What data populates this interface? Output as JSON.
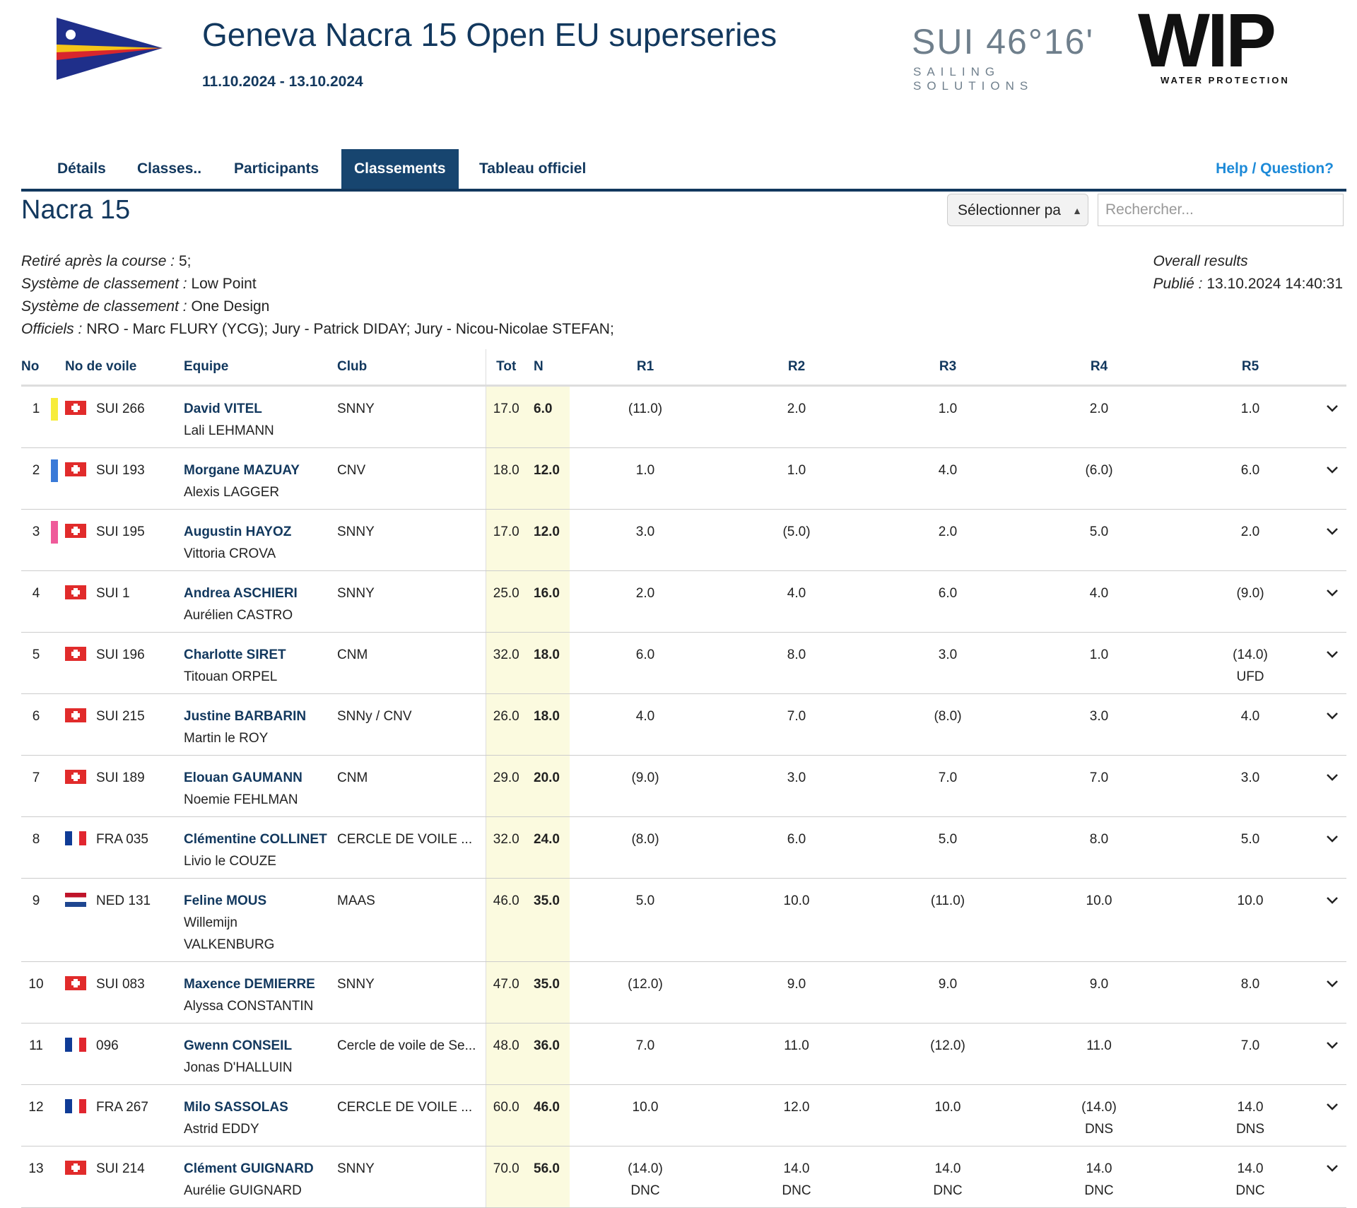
{
  "header": {
    "title": "Geneva Nacra 15 Open EU superseries",
    "dates": "11.10.2024 - 13.10.2024",
    "sponsors": [
      {
        "name": "SUI 46 16",
        "word": "SUI 46°16'",
        "sub": "SAILING SOLUTIONS"
      },
      {
        "name": "WIP",
        "word": "WIP",
        "sub": "WATER PROTECTION"
      }
    ]
  },
  "nav": {
    "tabs": [
      "Détails",
      "Classes..",
      "Participants",
      "Classements",
      "Tableau officiel"
    ],
    "active": "Classements",
    "help": "Help / Question?"
  },
  "class_name": "Nacra 15",
  "controls": {
    "select_label": "Sélectionner pa",
    "search_placeholder": "Rechercher..."
  },
  "info": {
    "lines": [
      {
        "k": "Retiré après la course :",
        "v": " 5;"
      },
      {
        "k": "Système de classement :",
        "v": " Low Point"
      },
      {
        "k": "Système de classement :",
        "v": " One Design"
      },
      {
        "k": "Officiels :",
        "v": " NRO - Marc FLURY (YCG); Jury - Patrick DIDAY; Jury - Nicou-Nicolae STEFAN;"
      }
    ],
    "overall": "Overall results",
    "published_k": "Publié :",
    "published_v": " 13.10.2024 14:40:31"
  },
  "table": {
    "headers": {
      "no": "No",
      "sail": "No de voile",
      "team": "Equipe",
      "club": "Club",
      "tot": "Tot",
      "n": "N",
      "r1": "R1",
      "r2": "R2",
      "r3": "R3",
      "r4": "R4",
      "r5": "R5"
    },
    "rows": [
      {
        "no": "1",
        "marker": "#f7ec3a",
        "flag": "sui",
        "sail": "SUI 266",
        "helm": "David VITEL",
        "crew": "Lali LEHMANN",
        "club": "SNNY",
        "tot": "17.0",
        "n": "6.0",
        "r": [
          [
            "(11.0)",
            ""
          ],
          [
            "2.0",
            ""
          ],
          [
            "1.0",
            ""
          ],
          [
            "2.0",
            ""
          ],
          [
            "1.0",
            ""
          ]
        ]
      },
      {
        "no": "2",
        "marker": "#3a7ad8",
        "flag": "sui",
        "sail": "SUI 193",
        "helm": "Morgane MAZUAY",
        "crew": "Alexis LAGGER",
        "club": "CNV",
        "tot": "18.0",
        "n": "12.0",
        "r": [
          [
            "1.0",
            ""
          ],
          [
            "1.0",
            ""
          ],
          [
            "4.0",
            ""
          ],
          [
            "(6.0)",
            ""
          ],
          [
            "6.0",
            ""
          ]
        ]
      },
      {
        "no": "3",
        "marker": "#ef5a9a",
        "flag": "sui",
        "sail": "SUI 195",
        "helm": "Augustin HAYOZ",
        "crew": "Vittoria CROVA",
        "club": "SNNY",
        "tot": "17.0",
        "n": "12.0",
        "r": [
          [
            "3.0",
            ""
          ],
          [
            "(5.0)",
            ""
          ],
          [
            "2.0",
            ""
          ],
          [
            "5.0",
            ""
          ],
          [
            "2.0",
            ""
          ]
        ]
      },
      {
        "no": "4",
        "marker": "",
        "flag": "sui",
        "sail": "SUI 1",
        "helm": "Andrea ASCHIERI",
        "crew": "Aurélien CASTRO",
        "club": "SNNY",
        "tot": "25.0",
        "n": "16.0",
        "r": [
          [
            "2.0",
            ""
          ],
          [
            "4.0",
            ""
          ],
          [
            "6.0",
            ""
          ],
          [
            "4.0",
            ""
          ],
          [
            "(9.0)",
            ""
          ]
        ]
      },
      {
        "no": "5",
        "marker": "",
        "flag": "sui",
        "sail": "SUI 196",
        "helm": "Charlotte SIRET",
        "crew": "Titouan ORPEL",
        "club": "CNM",
        "tot": "32.0",
        "n": "18.0",
        "r": [
          [
            "6.0",
            ""
          ],
          [
            "8.0",
            ""
          ],
          [
            "3.0",
            ""
          ],
          [
            "1.0",
            ""
          ],
          [
            "(14.0)",
            "UFD"
          ]
        ]
      },
      {
        "no": "6",
        "marker": "",
        "flag": "sui",
        "sail": "SUI 215",
        "helm": "Justine BARBARIN",
        "crew": "Martin le ROY",
        "club": "SNNy / CNV",
        "tot": "26.0",
        "n": "18.0",
        "r": [
          [
            "4.0",
            ""
          ],
          [
            "7.0",
            ""
          ],
          [
            "(8.0)",
            ""
          ],
          [
            "3.0",
            ""
          ],
          [
            "4.0",
            ""
          ]
        ]
      },
      {
        "no": "7",
        "marker": "",
        "flag": "sui",
        "sail": "SUI 189",
        "helm": "Elouan GAUMANN",
        "crew": "Noemie FEHLMAN",
        "club": "CNM",
        "tot": "29.0",
        "n": "20.0",
        "r": [
          [
            "(9.0)",
            ""
          ],
          [
            "3.0",
            ""
          ],
          [
            "7.0",
            ""
          ],
          [
            "7.0",
            ""
          ],
          [
            "3.0",
            ""
          ]
        ]
      },
      {
        "no": "8",
        "marker": "",
        "flag": "fra",
        "sail": "FRA 035",
        "helm": "Clémentine COLLINET",
        "crew": "Livio le COUZE",
        "club": "CERCLE DE VOILE ...",
        "tot": "32.0",
        "n": "24.0",
        "r": [
          [
            "(8.0)",
            ""
          ],
          [
            "6.0",
            ""
          ],
          [
            "5.0",
            ""
          ],
          [
            "8.0",
            ""
          ],
          [
            "5.0",
            ""
          ]
        ]
      },
      {
        "no": "9",
        "marker": "",
        "flag": "ned",
        "sail": "NED 131",
        "helm": "Feline MOUS",
        "crew": "Willemijn",
        "crew2": "VALKENBURG",
        "club": "MAAS",
        "tot": "46.0",
        "n": "35.0",
        "r": [
          [
            "5.0",
            ""
          ],
          [
            "10.0",
            ""
          ],
          [
            "(11.0)",
            ""
          ],
          [
            "10.0",
            ""
          ],
          [
            "10.0",
            ""
          ]
        ]
      },
      {
        "no": "10",
        "marker": "",
        "flag": "sui",
        "sail": "SUI 083",
        "helm": "Maxence DEMIERRE",
        "crew": "Alyssa CONSTANTIN",
        "club": "SNNY",
        "tot": "47.0",
        "n": "35.0",
        "r": [
          [
            "(12.0)",
            ""
          ],
          [
            "9.0",
            ""
          ],
          [
            "9.0",
            ""
          ],
          [
            "9.0",
            ""
          ],
          [
            "8.0",
            ""
          ]
        ]
      },
      {
        "no": "11",
        "marker": "",
        "flag": "fra",
        "sail": "096",
        "helm": "Gwenn CONSEIL",
        "crew": "Jonas D'HALLUIN",
        "club": "Cercle de voile de Se...",
        "tot": "48.0",
        "n": "36.0",
        "r": [
          [
            "7.0",
            ""
          ],
          [
            "11.0",
            ""
          ],
          [
            "(12.0)",
            ""
          ],
          [
            "11.0",
            ""
          ],
          [
            "7.0",
            ""
          ]
        ]
      },
      {
        "no": "12",
        "marker": "",
        "flag": "fra",
        "sail": "FRA 267",
        "helm": "Milo SASSOLAS",
        "crew": "Astrid EDDY",
        "club": "CERCLE DE VOILE ...",
        "tot": "60.0",
        "n": "46.0",
        "r": [
          [
            "10.0",
            ""
          ],
          [
            "12.0",
            ""
          ],
          [
            "10.0",
            ""
          ],
          [
            "(14.0)",
            "DNS"
          ],
          [
            "14.0",
            "DNS"
          ]
        ]
      },
      {
        "no": "13",
        "marker": "",
        "flag": "sui",
        "sail": "SUI 214",
        "helm": "Clément GUIGNARD",
        "crew": "Aurélie GUIGNARD",
        "club": "SNNY",
        "tot": "70.0",
        "n": "56.0",
        "r": [
          [
            "(14.0)",
            "DNC"
          ],
          [
            "14.0",
            "DNC"
          ],
          [
            "14.0",
            "DNC"
          ],
          [
            "14.0",
            "DNC"
          ],
          [
            "14.0",
            "DNC"
          ]
        ]
      }
    ]
  }
}
